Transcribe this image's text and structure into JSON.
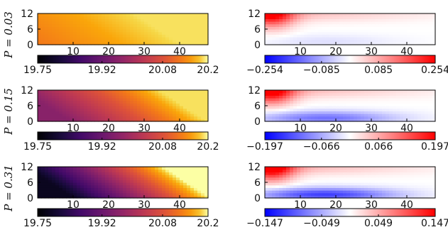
{
  "chart_data": [
    {
      "type": "heatmap",
      "row_label": "P = 0.03",
      "ylim": [
        0,
        12
      ],
      "xlim": [
        0,
        48
      ],
      "x_ticks": [
        "10",
        "20",
        "30",
        "40"
      ],
      "y_ticks": [
        "0",
        "6",
        "12"
      ],
      "colorbar": {
        "cmap": "inferno",
        "ticks": [
          "19.75",
          "19.92",
          "20.08",
          "20.2"
        ],
        "range": [
          19.75,
          20.2
        ]
      },
      "field": {
        "lo": 20.13,
        "hi": 20.19,
        "diag_hi": 1.08,
        "diag_lo": 0.9
      }
    },
    {
      "type": "heatmap",
      "row_label": "",
      "ylim": [
        0,
        12
      ],
      "xlim": [
        0,
        48
      ],
      "x_ticks": [
        "10",
        "20",
        "30",
        "40"
      ],
      "y_ticks": [
        "0",
        "6",
        "12"
      ],
      "colorbar": {
        "cmap": "bwr",
        "ticks": [
          "−0.254",
          "−0.085",
          "0.085",
          "0.254"
        ],
        "range": [
          -0.254,
          0.254
        ]
      },
      "field": {
        "red_peak": 0.85,
        "blue_peak": -0.12
      }
    },
    {
      "type": "heatmap",
      "row_label": "P = 0.15",
      "ylim": [
        0,
        12
      ],
      "xlim": [
        0,
        48
      ],
      "x_ticks": [
        "10",
        "20",
        "30",
        "40"
      ],
      "y_ticks": [
        "0",
        "6",
        "12"
      ],
      "colorbar": {
        "cmap": "inferno",
        "ticks": [
          "19.75",
          "19.92",
          "20.08",
          "20.2"
        ],
        "range": [
          19.75,
          20.2
        ]
      },
      "field": {
        "lo": 19.96,
        "hi": 20.19,
        "diag_hi": 1.08,
        "diag_lo": 0.6
      }
    },
    {
      "type": "heatmap",
      "row_label": "",
      "ylim": [
        0,
        12
      ],
      "xlim": [
        0,
        48
      ],
      "x_ticks": [
        "10",
        "20",
        "30",
        "40"
      ],
      "y_ticks": [
        "0",
        "6",
        "12"
      ],
      "colorbar": {
        "cmap": "bwr",
        "ticks": [
          "−0.197",
          "−0.066",
          "0.066",
          "0.197"
        ],
        "range": [
          -0.197,
          0.197
        ]
      },
      "field": {
        "red_peak": 0.9,
        "blue_peak": -0.55
      }
    },
    {
      "type": "heatmap",
      "row_label": "P = 0.31",
      "ylim": [
        0,
        12
      ],
      "xlim": [
        0,
        48
      ],
      "x_ticks": [
        "10",
        "20",
        "30",
        "40"
      ],
      "y_ticks": [
        "0",
        "6",
        "12"
      ],
      "colorbar": {
        "cmap": "inferno",
        "ticks": [
          "19.75",
          "19.92",
          "20.08",
          "20.2"
        ],
        "range": [
          19.75,
          20.2
        ]
      },
      "field": {
        "lo": 19.78,
        "hi": 20.2,
        "diag_hi": 1.1,
        "diag_lo": 0.55
      }
    },
    {
      "type": "heatmap",
      "row_label": "",
      "ylim": [
        0,
        12
      ],
      "xlim": [
        0,
        48
      ],
      "x_ticks": [
        "10",
        "20",
        "30",
        "40"
      ],
      "y_ticks": [
        "0",
        "6",
        "12"
      ],
      "colorbar": {
        "cmap": "bwr",
        "ticks": [
          "−0.147",
          "−0.049",
          "0.049",
          "0.147"
        ],
        "range": [
          -0.147,
          0.147
        ]
      },
      "field": {
        "red_peak": 0.95,
        "blue_peak": -0.75
      }
    }
  ]
}
